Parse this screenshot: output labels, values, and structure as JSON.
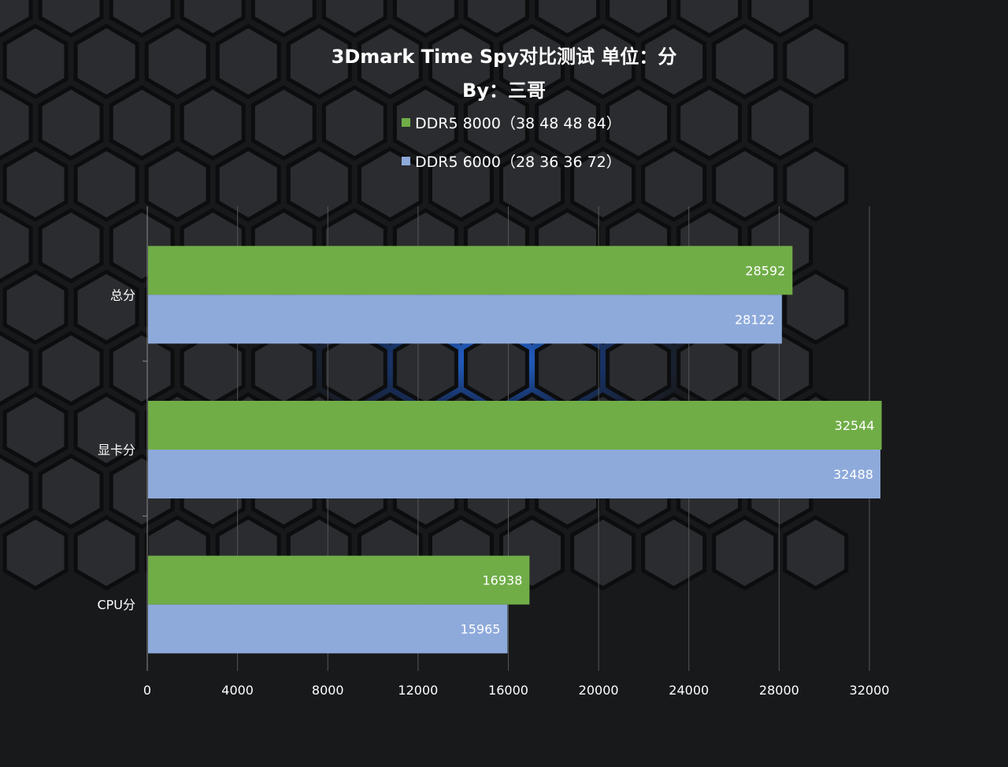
{
  "chart_data": {
    "type": "bar",
    "orientation": "horizontal",
    "title": "3Dmark Time Spy对比测试 单位：分",
    "subtitle": "By：三哥",
    "categories": [
      "总分",
      "显卡分",
      "CPU分"
    ],
    "series": [
      {
        "name": "DDR5 8000（38 48 48 84）",
        "color": "#70ad47",
        "values": [
          28592,
          32544,
          16938
        ]
      },
      {
        "name": "DDR5 6000（28 36 36 72）",
        "color": "#8eaadb",
        "values": [
          28122,
          32488,
          15965
        ]
      }
    ],
    "xlim": [
      0,
      32000
    ],
    "xticks": [
      "0",
      "4000",
      "8000",
      "12000",
      "16000",
      "20000",
      "24000",
      "28000",
      "32000"
    ],
    "grid": true,
    "legend_position": "top"
  }
}
